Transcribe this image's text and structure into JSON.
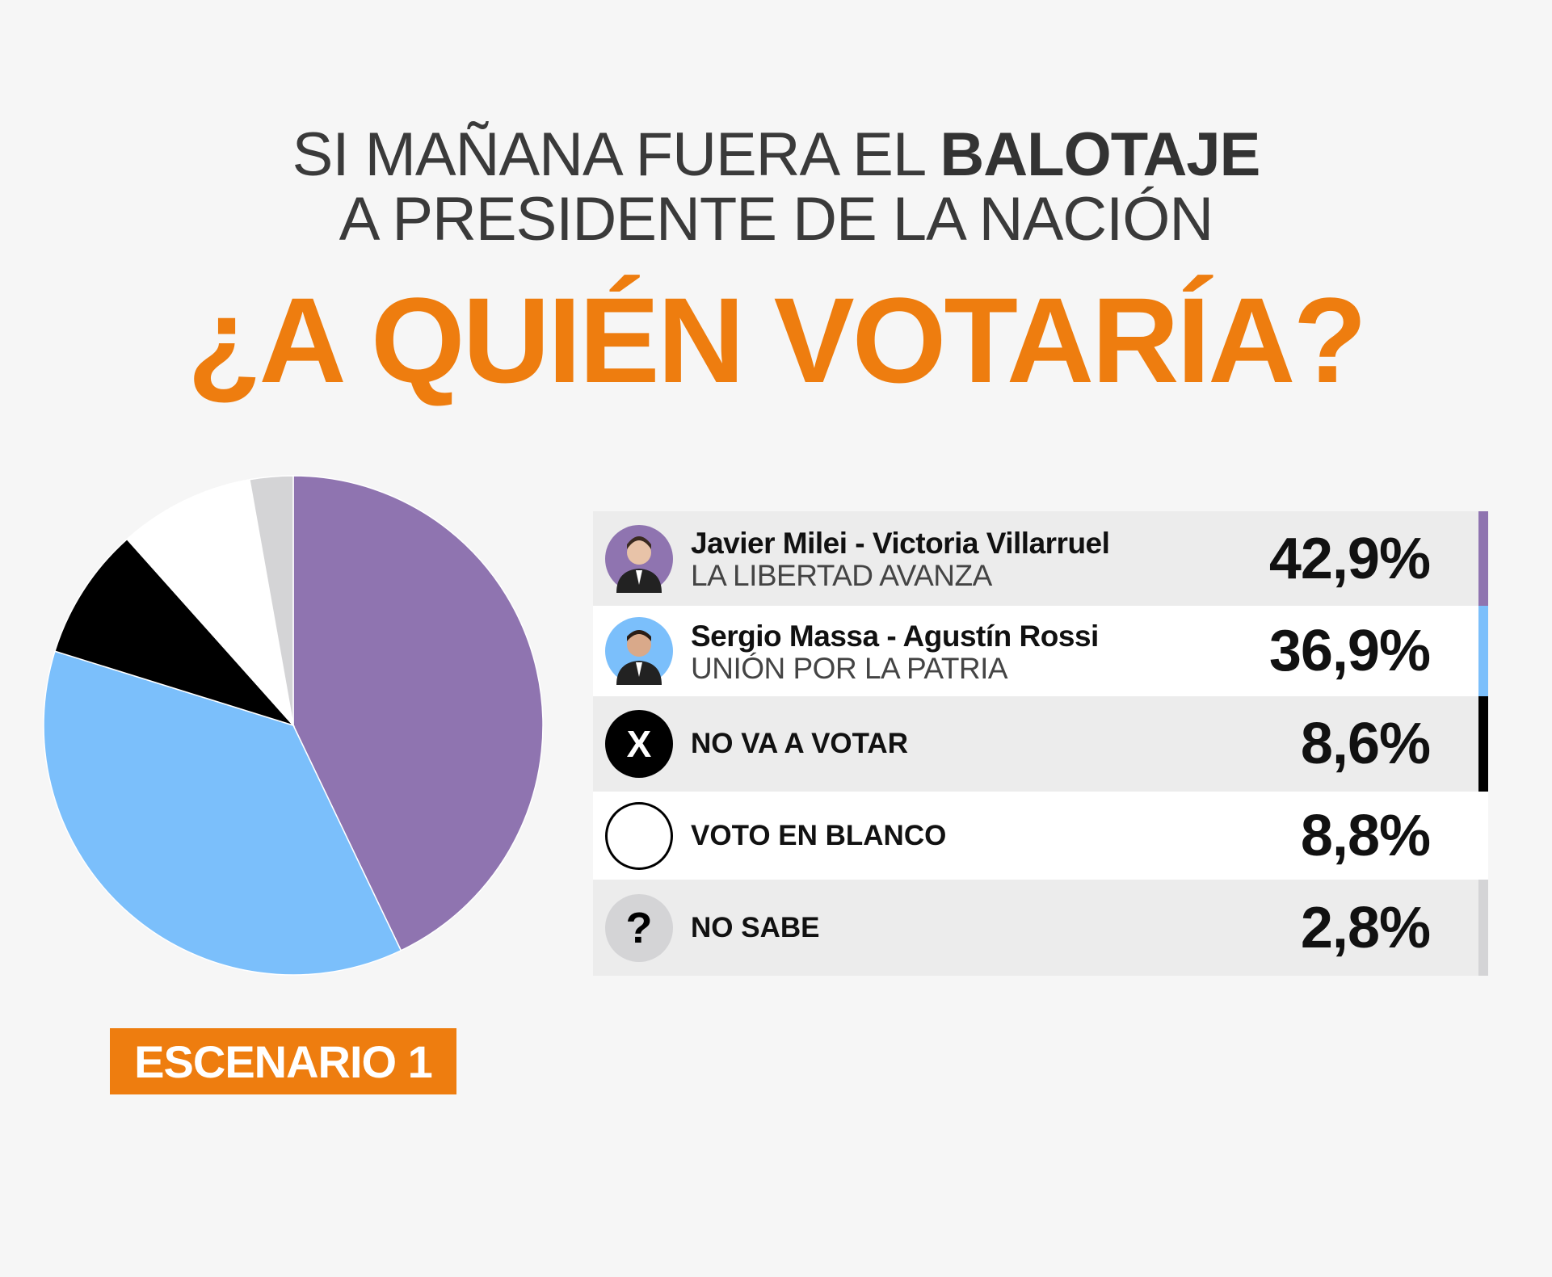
{
  "header": {
    "line1_prefix": "SI MAÑANA FUERA EL ",
    "line1_bold": "BALOTAJE",
    "line2": "A PRESIDENTE DE LA NACIÓN",
    "question": "¿A QUIÉN VOTARÍA?"
  },
  "scenario": "ESCENARIO 1",
  "rows": [
    {
      "name": "Javier Milei - Victoria Villarruel",
      "party": "LA LIBERTAD AVANZA",
      "pct": "42,9%",
      "bg": "#ececec",
      "color": "#8f74b0"
    },
    {
      "name": "Sergio Massa - Agustín Rossi",
      "party": "UNIÓN POR LA PATRIA",
      "pct": "36,9%",
      "bg": "#ffffff",
      "color": "#7bbffb"
    },
    {
      "label": "NO VA A VOTAR",
      "icon": "X",
      "pct": "8,6%",
      "bg": "#ececec",
      "color": "#000000"
    },
    {
      "label": "VOTO EN BLANCO",
      "pct": "8,8%",
      "bg": "#ffffff",
      "color": "#ffffff"
    },
    {
      "label": "NO SABE",
      "icon": "?",
      "pct": "2,8%",
      "bg": "#ececec",
      "color": "#d4d4d6"
    }
  ],
  "chart_data": {
    "type": "pie",
    "title": "¿A QUIÉN VOTARÍA?",
    "categories": [
      "Javier Milei - Victoria Villarruel",
      "Sergio Massa - Agustín Rossi",
      "NO VA A VOTAR",
      "VOTO EN BLANCO",
      "NO SABE"
    ],
    "values": [
      42.9,
      36.9,
      8.6,
      8.8,
      2.8
    ],
    "colors": [
      "#8f74b0",
      "#7bbffb",
      "#000000",
      "#ffffff",
      "#d4d4d6"
    ],
    "start": "12 o'clock, clockwise"
  }
}
